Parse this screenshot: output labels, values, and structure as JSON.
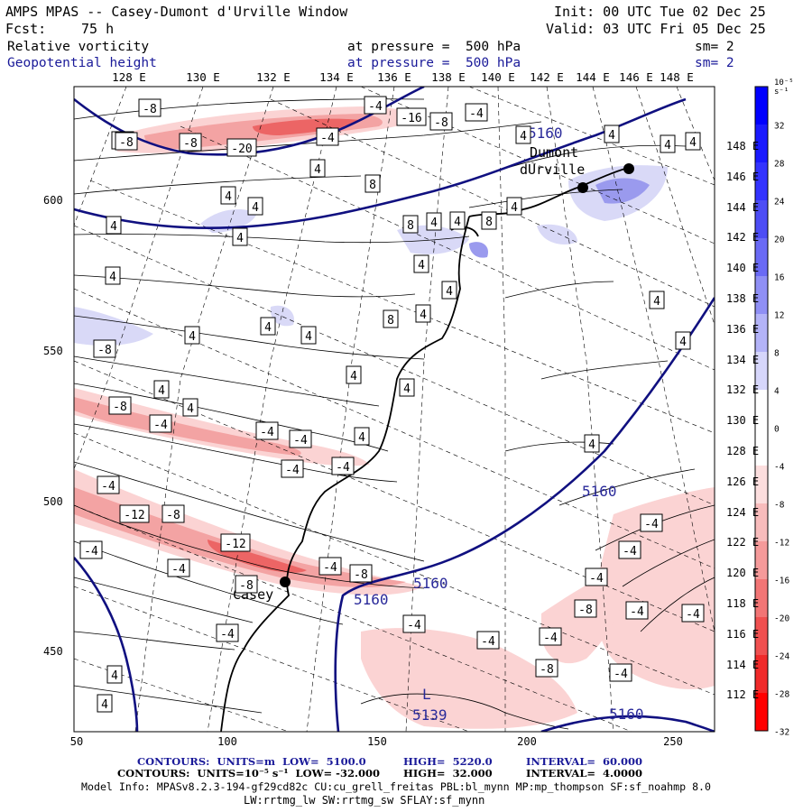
{
  "header": {
    "title": "AMPS MPAS -- Casey-Dumont d'Urville Window",
    "init": "Init: 00 UTC Tue 02 Dec 25",
    "fcst_label": "Fcst:",
    "fcst_value": "75 h",
    "valid": "Valid: 03 UTC Fri 05 Dec 25",
    "field1_name": "Relative vorticity",
    "field1_level": "at pressure =  500 hPa",
    "field1_sm": "sm= 2",
    "field2_name": "Geopotential height",
    "field2_level": "at pressure =  500 hPa",
    "field2_sm": "sm= 2"
  },
  "longitude_labels": [
    "128 E",
    "130 E",
    "132 E",
    "134 E",
    "136 E",
    "138 E",
    "140 E",
    "142 E",
    "144 E",
    "146 E",
    "148 E"
  ],
  "latitude_labels": [
    "148 E",
    "146 E",
    "144 E",
    "142 E",
    "140 E",
    "138 E",
    "136 E",
    "134 E",
    "132 E",
    "130 E",
    "128 E",
    "126 E",
    "124 E",
    "122 E",
    "120 E",
    "118 E",
    "116 E",
    "114 E",
    "112 E"
  ],
  "x_axis_ticks": [
    "50",
    "100",
    "150",
    "200",
    "250"
  ],
  "y_axis_ticks": [
    "600",
    "550",
    "500",
    "450"
  ],
  "colorbar": {
    "unit_label": "10⁻⁵ s⁻¹",
    "labels": [
      "32",
      "28",
      "24",
      "20",
      "16",
      "12",
      "8",
      "4",
      "0",
      "-4",
      "-8",
      "-12",
      "-16",
      "-20",
      "-24",
      "-28",
      "-32"
    ],
    "colors": [
      "#0000ff",
      "#1a1aff",
      "#3333ff",
      "#4d4df5",
      "#6a6af5",
      "#8f8ff5",
      "#b3b3f8",
      "#d6d6fb",
      "#ffffff",
      "#ffffff",
      "#fcdede",
      "#f8bcbc",
      "#f59a9a",
      "#f27575",
      "#f05050",
      "#f02a2a",
      "#ff0000"
    ]
  },
  "places": {
    "dumont_line1": "Dumont",
    "dumont_line2": "dUrville",
    "casey": "Casey"
  },
  "height_labels": [
    {
      "text": "5160",
      "kind": "contour"
    },
    {
      "text": "5160",
      "kind": "contour"
    },
    {
      "text": "5160",
      "kind": "contour"
    },
    {
      "text": "5160",
      "kind": "contour"
    },
    {
      "text": "5160",
      "kind": "contour"
    },
    {
      "text": "L",
      "kind": "low"
    },
    {
      "text": "5139",
      "kind": "low-value"
    }
  ],
  "vorticity_labels": [
    "-8",
    "-4",
    "-4",
    "-8",
    "-4",
    "-8",
    "-20",
    "-4",
    "-16",
    "-8",
    "4",
    "8",
    "4",
    "4",
    "8",
    "4",
    "4",
    "4",
    "4",
    "4",
    "4",
    "4",
    "8",
    "4",
    "4",
    "4",
    "4",
    "8",
    "4",
    "4",
    "4",
    "4",
    "4",
    "4",
    "4",
    "4",
    "4",
    "4",
    "4",
    "4",
    "4",
    "-8",
    "-8",
    "-4",
    "-4",
    "-4",
    "-4",
    "-4",
    "-12",
    "-8",
    "-12",
    "-4",
    "-4",
    "-8",
    "-8",
    "-4",
    "-4",
    "-4",
    "-4",
    "-4",
    "-4",
    "-4",
    "-4",
    "-8",
    "-4",
    "-8",
    "-4",
    "-4",
    "-4",
    "4",
    "4"
  ],
  "footer": {
    "line1_a": "CONTOURS:  UNITS=m  LOW=  5100.0",
    "line1_b": "HIGH=  5220.0",
    "line1_c": "INTERVAL=  60.000",
    "line2_a": "CONTOURS:  UNITS=10⁻⁵ s⁻¹  LOW= -32.000",
    "line2_b": "HIGH=  32.000",
    "line2_c": "INTERVAL=  4.0000",
    "model_info": "Model Info: MPASv8.2.3-194-gf29cd82c CU:cu_grell_freitas PBL:bl_mynn MP:mp_thompson SF:sf_noahmp 8.0",
    "model_info2": "LW:rrtmg_lw SW:rrtmg_sw SFLAY:sf_mynn"
  }
}
